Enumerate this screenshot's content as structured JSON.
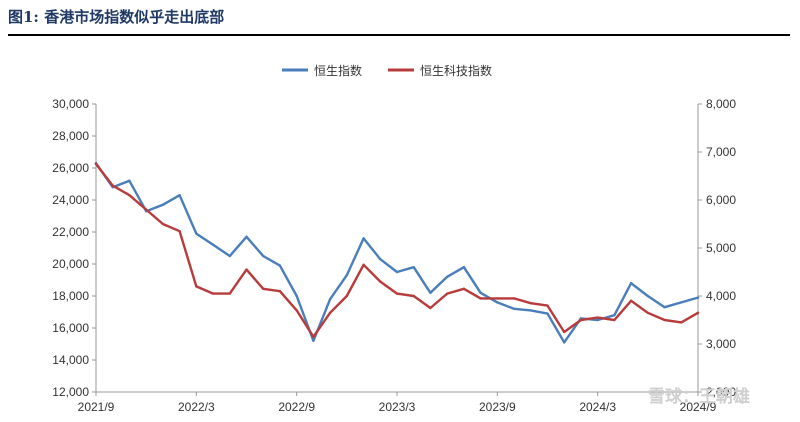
{
  "header": {
    "title": "图1:  香港市场指数似乎走出底部"
  },
  "watermark": {
    "text": "雪球：王朝雄"
  },
  "chart_data": {
    "type": "line",
    "x_ticks": [
      "2021/9",
      "2022/3",
      "2022/9",
      "2023/3",
      "2023/9",
      "2024/3",
      "2024/9"
    ],
    "x_range": [
      "2021/9",
      "2024/9"
    ],
    "y_left": {
      "ticks": [
        "12,000",
        "14,000",
        "16,000",
        "18,000",
        "20,000",
        "22,000",
        "24,000",
        "26,000",
        "28,000",
        "30,000"
      ],
      "range": [
        12000,
        30000
      ]
    },
    "y_right": {
      "ticks": [
        "2,000",
        "3,000",
        "4,000",
        "5,000",
        "6,000",
        "7,000",
        "8,000"
      ],
      "range": [
        2000,
        8000
      ]
    },
    "grid": false,
    "legend_position": "top-center",
    "series": [
      {
        "name": "恒生指数",
        "axis": "left",
        "color": "#4a7ebb",
        "x": [
          "2021/9",
          "2021/10",
          "2021/11",
          "2021/12",
          "2022/1",
          "2022/2",
          "2022/3",
          "2022/4",
          "2022/5",
          "2022/6",
          "2022/7",
          "2022/8",
          "2022/9",
          "2022/10",
          "2022/11",
          "2022/12",
          "2023/1",
          "2023/2",
          "2023/3",
          "2023/4",
          "2023/5",
          "2023/6",
          "2023/7",
          "2023/8",
          "2023/9",
          "2023/10",
          "2023/11",
          "2023/12",
          "2024/1",
          "2024/2",
          "2024/3",
          "2024/4",
          "2024/5",
          "2024/6",
          "2024/7",
          "2024/8",
          "2024/9"
        ],
        "values": [
          26300,
          24800,
          25200,
          23300,
          23700,
          24300,
          21900,
          21200,
          20500,
          21700,
          20500,
          19900,
          18000,
          15200,
          17800,
          19300,
          21600,
          20300,
          19500,
          19800,
          18200,
          19200,
          19800,
          18200,
          17600,
          17200,
          17100,
          16900,
          15100,
          16600,
          16500,
          16800,
          18800,
          18000,
          17300,
          17600,
          17900
        ]
      },
      {
        "name": "恒生科技指数",
        "axis": "right",
        "color": "#b83b3c",
        "x": [
          "2021/9",
          "2021/10",
          "2021/11",
          "2021/12",
          "2022/1",
          "2022/2",
          "2022/3",
          "2022/4",
          "2022/5",
          "2022/6",
          "2022/7",
          "2022/8",
          "2022/9",
          "2022/10",
          "2022/11",
          "2022/12",
          "2023/1",
          "2023/2",
          "2023/3",
          "2023/4",
          "2023/5",
          "2023/6",
          "2023/7",
          "2023/8",
          "2023/9",
          "2023/10",
          "2023/11",
          "2023/12",
          "2024/1",
          "2024/2",
          "2024/3",
          "2024/4",
          "2024/5",
          "2024/6",
          "2024/7",
          "2024/8",
          "2024/9"
        ],
        "values": [
          6750,
          6300,
          6100,
          5800,
          5500,
          5350,
          4200,
          4050,
          4050,
          4550,
          4150,
          4100,
          3700,
          3150,
          3650,
          4000,
          4650,
          4300,
          4050,
          4000,
          3750,
          4050,
          4150,
          3950,
          3950,
          3950,
          3850,
          3800,
          3250,
          3500,
          3550,
          3500,
          3900,
          3650,
          3500,
          3450,
          3650
        ]
      }
    ]
  }
}
